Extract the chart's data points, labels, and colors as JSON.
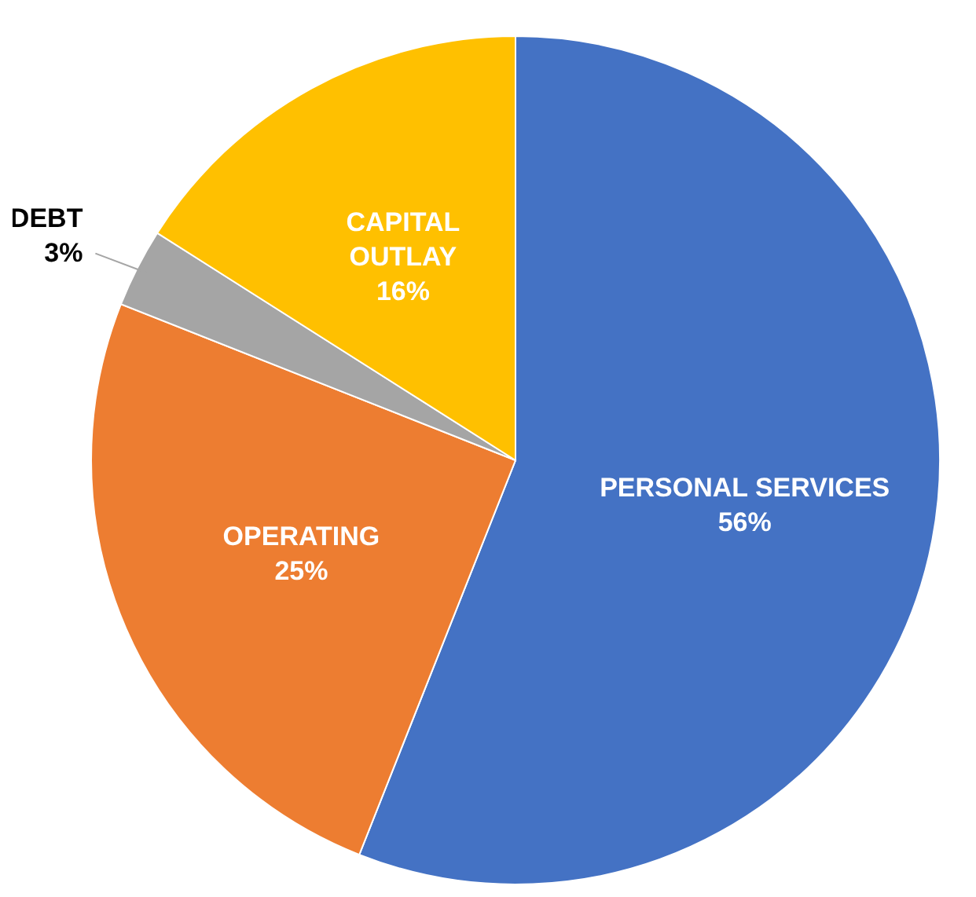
{
  "chart_data": {
    "type": "pie",
    "categories": [
      "PERSONAL SERVICES",
      "OPERATING",
      "DEBT",
      "CAPITAL OUTLAY"
    ],
    "values": [
      56,
      25,
      3,
      16
    ],
    "colors": [
      "#4472c4",
      "#ed7d31",
      "#a5a5a5",
      "#ffc000"
    ],
    "value_labels": [
      "56%",
      "25%",
      "3%",
      "16%"
    ],
    "legend": false
  }
}
